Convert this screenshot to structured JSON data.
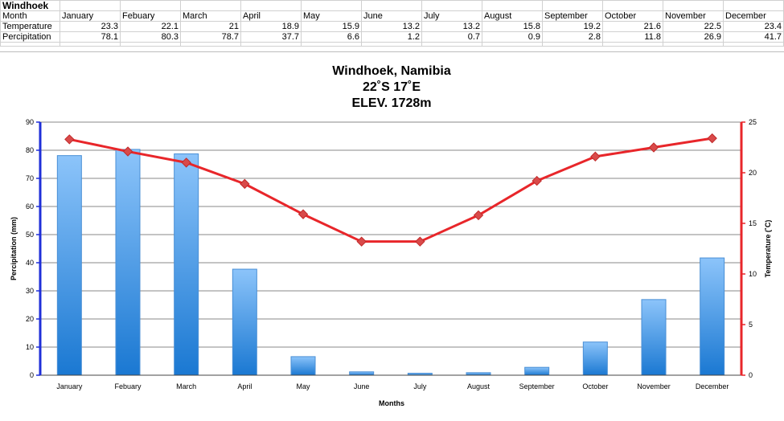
{
  "sheet": {
    "title": "Windhoek",
    "rows": [
      {
        "label": "Month",
        "cells": [
          "January",
          "Febuary",
          "March",
          "April",
          "May",
          "June",
          "July",
          "August",
          "September",
          "October",
          "November",
          "December"
        ],
        "numeric": false
      },
      {
        "label": "Temperature",
        "cells": [
          "23.3",
          "22.1",
          "21",
          "18.9",
          "15.9",
          "13.2",
          "13.2",
          "15.8",
          "19.2",
          "21.6",
          "22.5",
          "23.4"
        ],
        "numeric": true
      },
      {
        "label": "Percipitation",
        "cells": [
          "78.1",
          "80.3",
          "78.7",
          "37.7",
          "6.6",
          "1.2",
          "0.7",
          "0.9",
          "2.8",
          "11.8",
          "26.9",
          "41.7"
        ],
        "numeric": true
      }
    ]
  },
  "chart_data": {
    "type": "bar",
    "title": [
      "Windhoek, Namibia",
      "22˚S 17˚E",
      "ELEV. 1728m"
    ],
    "xlabel": "Months",
    "ylabel_left": "Percipitation (mm)",
    "ylabel_right": "Temperature (˚C)",
    "categories": [
      "January",
      "Febuary",
      "March",
      "April",
      "May",
      "June",
      "July",
      "August",
      "September",
      "October",
      "November",
      "December"
    ],
    "series": [
      {
        "kind": "bar",
        "axis": "left",
        "color": "#4a9be8",
        "values": [
          78.1,
          80.3,
          78.7,
          37.7,
          6.6,
          1.2,
          0.7,
          0.9,
          2.8,
          11.8,
          26.9,
          41.7
        ]
      },
      {
        "kind": "line",
        "axis": "right",
        "color": "#e8262a",
        "values": [
          23.3,
          22.1,
          21,
          18.9,
          15.9,
          13.2,
          13.2,
          15.8,
          19.2,
          21.6,
          22.5,
          23.4
        ]
      }
    ],
    "ylim_left": [
      0,
      90
    ],
    "yticks_left": [
      0,
      10,
      20,
      30,
      40,
      50,
      60,
      70,
      80,
      90
    ],
    "ylim_right": [
      0,
      25
    ],
    "yticks_right": [
      0,
      5,
      10,
      15,
      20,
      25
    ],
    "left_axis_color": "#1f2fd8",
    "right_axis_color": "#e8262a",
    "grid": true
  }
}
